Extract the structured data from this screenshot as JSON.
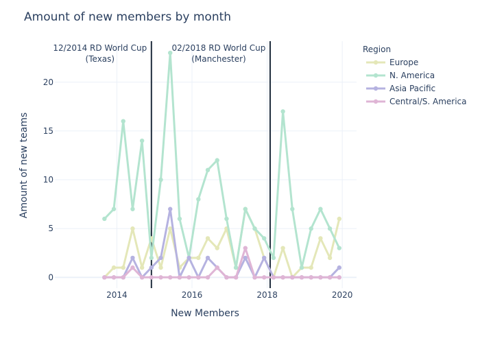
{
  "chart_data": {
    "type": "line",
    "title": "Amount of new members by month",
    "xlabel": "New Members",
    "ylabel": "Amount of new teams",
    "xlim": [
      2012.35,
      2020.38
    ],
    "ylim": [
      -1.1,
      24.2
    ],
    "x_ticks": [
      2014,
      2016,
      2018,
      2020
    ],
    "y_ticks": [
      0,
      5,
      10,
      15,
      20
    ],
    "grid": true,
    "legend": {
      "title": "Region",
      "placement": "right"
    },
    "x": [
      2013.67,
      2013.92,
      2014.17,
      2014.42,
      2014.67,
      2014.92,
      2015.17,
      2015.42,
      2015.67,
      2015.92,
      2016.17,
      2016.42,
      2016.67,
      2016.92,
      2017.17,
      2017.42,
      2017.67,
      2017.92,
      2018.17,
      2018.42,
      2018.67,
      2018.92,
      2019.17,
      2019.42,
      2019.67,
      2019.92
    ],
    "series": [
      {
        "name": "Europe",
        "color": "#e4e7b8",
        "values": [
          0,
          1,
          1,
          5,
          1,
          4,
          1,
          5,
          1,
          2,
          2,
          4,
          3,
          5,
          1,
          7,
          5,
          2,
          0,
          3,
          0,
          1,
          1,
          4,
          2,
          6
        ]
      },
      {
        "name": "N. America",
        "color": "#b3e4cf",
        "values": [
          6,
          7,
          16,
          7,
          14,
          2,
          10,
          23,
          6,
          2,
          8,
          11,
          12,
          6,
          1,
          7,
          5,
          4,
          2,
          17,
          7,
          1,
          5,
          7,
          5,
          3
        ]
      },
      {
        "name": "Asia Pacific",
        "color": "#b5b2e0",
        "values": [
          0,
          0,
          0,
          2,
          0,
          1,
          2,
          7,
          0,
          2,
          0,
          2,
          1,
          0,
          0,
          2,
          0,
          2,
          0,
          0,
          0,
          0,
          0,
          0,
          0,
          1
        ]
      },
      {
        "name": "Central/S. America",
        "color": "#dfb5d5",
        "values": [
          0,
          0,
          0,
          1,
          0,
          0,
          0,
          0,
          0,
          0,
          0,
          0,
          1,
          0,
          0,
          3,
          0,
          0,
          0,
          0,
          0,
          0,
          0,
          0,
          0,
          0
        ]
      }
    ],
    "annotations": [
      {
        "x": 2014.92,
        "line1": "12/2014 RD World Cup",
        "line2": "(Texas)",
        "line_color": "#1f2d3d"
      },
      {
        "x": 2018.08,
        "line1": "02/2018 RD World Cup",
        "line2": "(Manchester)",
        "line_color": "#1f2d3d"
      }
    ]
  }
}
